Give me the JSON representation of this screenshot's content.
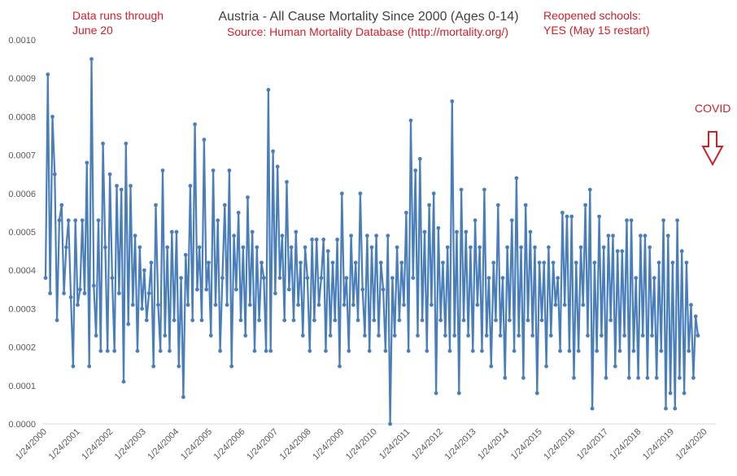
{
  "chart_data": {
    "type": "line",
    "title": "Austria - All Cause Mortality Since 2000 (Ages 0-14)",
    "subtitle": "Source: Human Mortality Database (http://mortality.org/)",
    "xlabel": "",
    "ylabel": "",
    "ylim": [
      0,
      0.001
    ],
    "y_ticks": [
      "0.0000",
      "0.0001",
      "0.0002",
      "0.0003",
      "0.0004",
      "0.0005",
      "0.0006",
      "0.0007",
      "0.0008",
      "0.0009",
      "0.0010"
    ],
    "x_ticks": [
      "1/24/2000",
      "1/24/2001",
      "1/24/2002",
      "1/24/2003",
      "1/24/2004",
      "1/24/2005",
      "1/24/2006",
      "1/24/2007",
      "1/24/2008",
      "1/24/2009",
      "1/24/2010",
      "1/24/2011",
      "1/24/2012",
      "1/24/2013",
      "1/24/2014",
      "1/24/2015",
      "1/24/2016",
      "1/24/2017",
      "1/24/2018",
      "1/24/2019",
      "1/24/2020"
    ],
    "grid": false,
    "legend": "none",
    "x_start": "2000-01-24",
    "x_end": "2020-06-20",
    "color": "#4a7ebb",
    "series_note_values": [
      0.00038,
      0.00091,
      0.00034,
      0.0008,
      0.00065,
      0.00027,
      0.00053,
      0.00057,
      0.00034,
      0.00046,
      0.00053,
      0.00033,
      0.00015,
      0.00053,
      0.00031,
      0.00035,
      0.00053,
      0.00034,
      0.00068,
      0.00015,
      0.00095,
      0.00036,
      0.00023,
      0.00053,
      0.00019,
      0.00073,
      0.00046,
      0.00019,
      0.00065,
      0.00038,
      0.00019,
      0.00062,
      0.00034,
      0.00061,
      0.00011,
      0.00073,
      0.00026,
      0.00062,
      0.00031,
      0.00049,
      0.00019,
      0.00046,
      0.0003,
      0.0004,
      0.00027,
      0.00034,
      0.00042,
      0.00015,
      0.00057,
      0.00031,
      0.00019,
      0.00066,
      0.00023,
      0.00046,
      0.00019,
      0.0005,
      0.00027,
      0.0005,
      0.00015,
      0.00038,
      7e-05,
      0.00044,
      0.00031,
      0.00062,
      0.00027,
      0.00078,
      0.00035,
      0.00046,
      0.00027,
      0.00074,
      0.00035,
      0.00042,
      0.00023,
      0.00066,
      0.00031,
      0.00053,
      0.00019,
      0.00038,
      0.00057,
      0.00031,
      0.00066,
      0.00015,
      0.00049,
      0.00035,
      0.00055,
      0.00027,
      0.00046,
      0.00023,
      0.00059,
      0.00031,
      0.0005,
      0.00019,
      0.00046,
      0.00027,
      0.00042,
      0.00038,
      0.00019,
      0.00087,
      0.00019,
      0.00071,
      0.00034,
      0.00067,
      0.00038,
      0.00049,
      0.00027,
      0.00063,
      0.00035,
      0.00046,
      0.00027,
      0.0005,
      0.00031,
      0.00042,
      0.00023,
      0.00046,
      0.00038,
      0.00019,
      0.00048,
      0.00027,
      0.00048,
      0.00031,
      0.00038,
      0.00048,
      0.00019,
      0.00045,
      0.00023,
      0.00042,
      0.00027,
      0.00048,
      0.00015,
      0.0006,
      0.00031,
      0.00038,
      0.00019,
      0.00049,
      0.00031,
      0.00042,
      0.00027,
      0.0006,
      0.00035,
      0.00023,
      0.00049,
      0.00019,
      0.00046,
      0.00027,
      0.00049,
      0.00023,
      0.00042,
      0.00035,
      0.00019,
      0.00049,
      0.0,
      0.00038,
      0.00023,
      0.00046,
      0.00027,
      0.00042,
      0.00031,
      0.00055,
      0.00019,
      0.00079,
      0.00038,
      0.00066,
      0.00023,
      0.00069,
      0.00027,
      0.0005,
      0.00019,
      0.00057,
      0.00031,
      0.0006,
      8e-05,
      0.00051,
      0.00027,
      0.00042,
      0.00023,
      0.00046,
      0.00019,
      0.00084,
      0.00023,
      0.0005,
      8e-05,
      0.00061,
      0.00027,
      0.0005,
      0.00023,
      0.00046,
      0.00019,
      0.00053,
      0.00031,
      0.00046,
      0.00019,
      0.00061,
      0.00023,
      0.00038,
      0.00015,
      0.00042,
      0.00027,
      0.00057,
      0.00023,
      0.00038,
      0.00012,
      0.00046,
      0.00027,
      0.00053,
      0.00019,
      0.00064,
      0.00023,
      0.00046,
      0.00012,
      0.00057,
      0.00027,
      0.0005,
      0.00023,
      0.00046,
      8e-05,
      0.00042,
      0.00027,
      0.00042,
      0.00015,
      0.00046,
      0.00023,
      0.00042,
      0.00031,
      0.00038,
      0.00019,
      0.00055,
      0.00031,
      0.00054,
      0.00019,
      0.00054,
      0.00012,
      0.00042,
      0.00019,
      0.00046,
      0.00031,
      0.00057,
      0.00023,
      0.00061,
      4e-05,
      0.00042,
      0.00019,
      0.00054,
      0.00023,
      0.00046,
      0.00012,
      0.00049,
      0.00027,
      0.00049,
      0.00015,
      0.00045,
      0.00019,
      0.00045,
      0.00023,
      0.00053,
      0.00012,
      0.00053,
      0.00019,
      0.00038,
      0.00012,
      0.00049,
      0.00023,
      0.00049,
      0.00012,
      0.00046,
      0.00023,
      0.00038,
      0.00012,
      0.00042,
      0.00019,
      0.00053,
      4e-05,
      0.00049,
      8e-05,
      0.00042,
      4e-05,
      0.00053,
      0.00012,
      0.00045,
      8e-05,
      0.00042,
      0.00019,
      0.00031,
      0.00012,
      0.00028,
      0.00023
    ],
    "annotations": [
      "Data runs through",
      "June 20",
      "Reopened schools:",
      "YES (May 15 restart)",
      "COVID"
    ]
  },
  "annotations": {
    "left_line1": "Data runs through",
    "left_line2": "June 20",
    "right_line1": "Reopened schools:",
    "right_line2": "YES (May 15 restart)",
    "covid": "COVID"
  }
}
